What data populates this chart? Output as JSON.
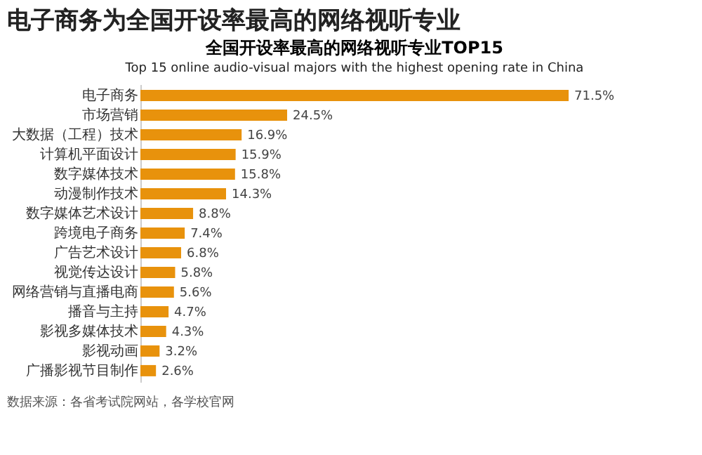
{
  "chart_data": {
    "type": "bar",
    "orientation": "horizontal",
    "title": "电子商务为全国开设率最高的网络视听专业",
    "subtitle": "全国开设率最高的网络视听专业TOP15",
    "annotations": [
      "Top 15 online audio-visual majors with the highest opening rate in China",
      "数据来源：各省考试院网站，各学校官网"
    ],
    "categories": [
      "电子商务",
      "市场营销",
      "大数据（工程）技术",
      "计算机平面设计",
      "数字媒体技术",
      "动漫制作技术",
      "数字媒体艺术设计",
      "跨境电子商务",
      "广告艺术设计",
      "视觉传达设计",
      "网络营销与直播电商",
      "播音与主持",
      "影视多媒体技术",
      "影视动画",
      "广播影视节目制作"
    ],
    "values": [
      71.5,
      24.5,
      16.9,
      15.9,
      15.8,
      14.3,
      8.8,
      7.4,
      6.8,
      5.8,
      5.6,
      4.7,
      4.3,
      3.2,
      2.6
    ],
    "value_labels": [
      "71.5%",
      "24.5%",
      "16.9%",
      "15.9%",
      "15.8%",
      "14.3%",
      "8.8%",
      "7.4%",
      "6.8%",
      "5.8%",
      "5.6%",
      "4.7%",
      "4.3%",
      "3.2%",
      "2.6%"
    ],
    "color": "#e8920c"
  }
}
